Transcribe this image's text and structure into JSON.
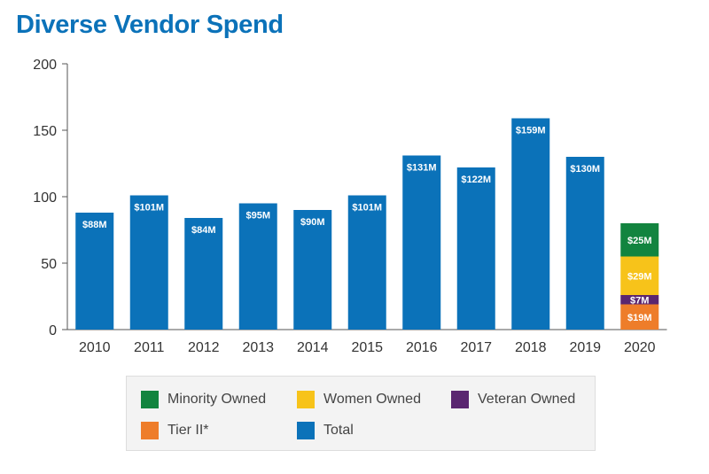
{
  "title": "Diverse Vendor Spend",
  "colors": {
    "title": "#0b72b9",
    "total": "#0b72b9",
    "minority_owned": "#12843f",
    "women_owned": "#f7c31a",
    "veteran_owned": "#5a2670",
    "tier_ii": "#ee7d2a"
  },
  "chart_data": {
    "type": "bar",
    "title": "Diverse Vendor Spend",
    "xlabel": "",
    "ylabel": "",
    "ylim": [
      0,
      200
    ],
    "yticks": [
      0,
      50,
      100,
      150,
      200
    ],
    "grid": false,
    "legend_position": "bottom",
    "categories": [
      "2010",
      "2011",
      "2012",
      "2013",
      "2014",
      "2015",
      "2016",
      "2017",
      "2018",
      "2019",
      "2020"
    ],
    "series": [
      {
        "name": "Total",
        "color": "#0b72b9",
        "values": [
          88,
          101,
          84,
          95,
          90,
          101,
          131,
          122,
          159,
          130,
          null
        ],
        "labels": [
          "$88M",
          "$101M",
          "$84M",
          "$95M",
          "$90M",
          "$101M",
          "$131M",
          "$122M",
          "$159M",
          "$130M",
          ""
        ]
      },
      {
        "name": "Tier II*",
        "color": "#ee7d2a",
        "stacked": true,
        "values": [
          null,
          null,
          null,
          null,
          null,
          null,
          null,
          null,
          null,
          null,
          19
        ],
        "labels": [
          "",
          "",
          "",
          "",
          "",
          "",
          "",
          "",
          "",
          "",
          "$19M"
        ]
      },
      {
        "name": "Veteran Owned",
        "color": "#5a2670",
        "stacked": true,
        "values": [
          null,
          null,
          null,
          null,
          null,
          null,
          null,
          null,
          null,
          null,
          7
        ],
        "labels": [
          "",
          "",
          "",
          "",
          "",
          "",
          "",
          "",
          "",
          "",
          "$7M"
        ]
      },
      {
        "name": "Women Owned",
        "color": "#f7c31a",
        "stacked": true,
        "values": [
          null,
          null,
          null,
          null,
          null,
          null,
          null,
          null,
          null,
          null,
          29
        ],
        "labels": [
          "",
          "",
          "",
          "",
          "",
          "",
          "",
          "",
          "",
          "",
          "$29M"
        ]
      },
      {
        "name": "Minority Owned",
        "color": "#12843f",
        "stacked": true,
        "values": [
          null,
          null,
          null,
          null,
          null,
          null,
          null,
          null,
          null,
          null,
          25
        ],
        "labels": [
          "",
          "",
          "",
          "",
          "",
          "",
          "",
          "",
          "",
          "",
          "$25M"
        ]
      }
    ]
  },
  "legend": {
    "items": [
      {
        "label": "Minority Owned",
        "color": "#12843f"
      },
      {
        "label": "Women Owned",
        "color": "#f7c31a"
      },
      {
        "label": "Veteran Owned",
        "color": "#5a2670"
      },
      {
        "label": "Tier II*",
        "color": "#ee7d2a"
      },
      {
        "label": "Total",
        "color": "#0b72b9"
      }
    ]
  }
}
